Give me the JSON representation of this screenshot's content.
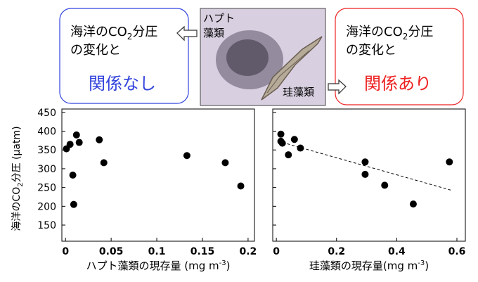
{
  "chart_data": [
    {
      "type": "scatter",
      "ylabel": {
        "prefix": "海洋のCO",
        "sub": "2",
        "suffix": "分圧 (μatm)"
      },
      "xlabel": {
        "prefix": "ハプト藻類の現存量 (mg m",
        "sup": "-3",
        "suffix": ")"
      },
      "x": [
        0.001,
        0.005,
        0.008,
        0.009,
        0.012,
        0.015,
        0.037,
        0.042,
        0.133,
        0.175,
        0.192
      ],
      "values": [
        353,
        365,
        283,
        205,
        390,
        370,
        377,
        316,
        335,
        316,
        254
      ],
      "color": "#000000",
      "xlim": [
        -0.004,
        0.207
      ],
      "ylim": [
        107,
        459
      ],
      "xticks": [
        0,
        0.05,
        0.1,
        0.15,
        0.2
      ],
      "yticks": [
        150,
        200,
        250,
        300,
        350,
        400,
        450
      ]
    },
    {
      "type": "scatter",
      "xlabel": {
        "prefix": "珪藻類の現存量(mg m",
        "sup": "-3",
        "suffix": ")"
      },
      "x": [
        0.015,
        0.015,
        0.02,
        0.04,
        0.06,
        0.08,
        0.295,
        0.295,
        0.36,
        0.455,
        0.575
      ],
      "values": [
        392,
        373,
        368,
        337,
        378,
        355,
        318,
        285,
        256,
        206,
        318
      ],
      "color": "#000000",
      "trendline": {
        "x": [
          0.02,
          0.58
        ],
        "values": [
          370,
          243
        ],
        "style": "dashed"
      },
      "xlim": [
        -0.012,
        0.628
      ],
      "ylim": [
        107,
        459
      ],
      "xticks": [
        0,
        0.2,
        0.4,
        0.6
      ],
      "yticks": [
        150,
        200,
        250,
        300,
        350,
        400,
        450
      ]
    }
  ],
  "callouts": [
    {
      "prefix": "海洋のCO",
      "sub": "2",
      "suffix": "分圧",
      "line2": "の変化と",
      "emphasis": "関係なし",
      "color": "#3344dd"
    },
    {
      "prefix": "海洋のCO",
      "sub": "2",
      "suffix": "分圧",
      "line2": "の変化と",
      "emphasis": "関係あり",
      "color": "#ee2222"
    }
  ],
  "photo_labels": {
    "haptophyte_line1": "ハプト",
    "haptophyte_line2": "藻類",
    "diatom": "珪藻類"
  }
}
